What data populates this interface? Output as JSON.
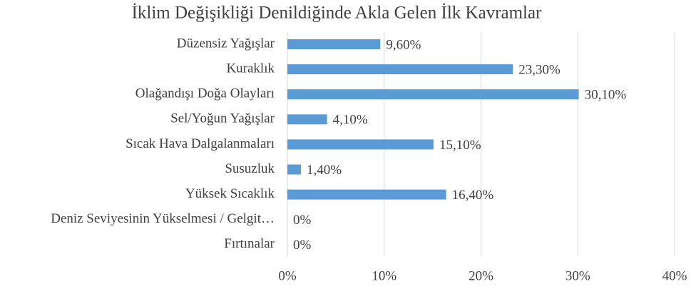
{
  "chart_data": {
    "type": "hbar",
    "title": "İklim Değişikliği Denildiğinde Akla Gelen İlk Kavramlar",
    "categories": [
      "Düzensiz Yağışlar",
      "Kuraklık",
      "Olağandışı Doğa Olayları",
      "Sel/Yoğun Yağışlar",
      "Sıcak Hava Dalgalanmaları",
      "Susuzluk",
      "Yüksek Sıcaklık",
      "Deniz Seviyesinin Yükselmesi / Gelgit…",
      "Fırtınalar"
    ],
    "values": [
      9.6,
      23.3,
      30.1,
      4.1,
      15.1,
      1.4,
      16.4,
      0,
      0
    ],
    "value_labels": [
      "9,60%",
      "23,30%",
      "30,10%",
      "4,10%",
      "15,10%",
      "1,40%",
      "16,40%",
      "0%",
      "0%"
    ],
    "color": "#5b9bd5",
    "xlim": [
      0,
      40
    ],
    "xticks": [
      {
        "value": 0,
        "label": "0%"
      },
      {
        "value": 10,
        "label": "10%"
      },
      {
        "value": 20,
        "label": "20%"
      },
      {
        "value": 30,
        "label": "30%"
      },
      {
        "value": 40,
        "label": "40%"
      }
    ],
    "grid": true
  }
}
